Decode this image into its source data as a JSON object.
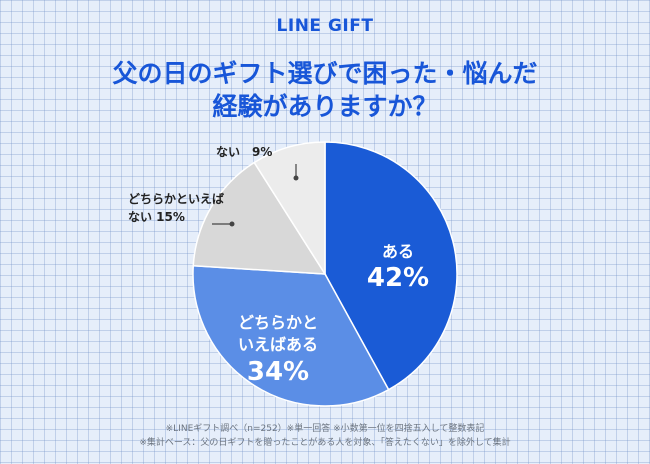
{
  "brand": "LINE GIFT",
  "title_line1": "父の日のギフト選びで困った・悩んだ",
  "title_line2": "経験がありますか？",
  "chart_data": {
    "type": "pie",
    "categories": [
      "ある",
      "どちらかといえばある",
      "どちらかといえばない",
      "ない"
    ],
    "values": [
      42,
      34,
      15,
      9
    ],
    "colors": [
      "#1a5bd6",
      "#5b8ee6",
      "#d8d8d8",
      "#ececec"
    ],
    "labels": {
      "yes_name": "ある",
      "yes_pct": "42%",
      "somewhat_yes_line1": "どちらかと",
      "somewhat_yes_line2": "いえばある",
      "somewhat_yes_pct": "34%",
      "somewhat_no_line1": "どちらかといえば",
      "somewhat_no_line2": "ない 15%",
      "no": "ない　9%"
    }
  },
  "notes": {
    "line1": "※LINEギフト調べ（n=252）※単一回答 ※小数第一位を四捨五入して整数表記",
    "line2": "※集計ベース：父の日ギフトを贈ったことがある人を対象、「答えたくない」を除外して集計"
  }
}
